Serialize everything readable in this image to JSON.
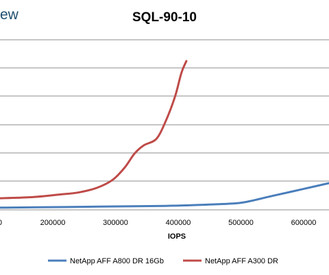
{
  "brand_fragment": "ew",
  "chart_data": {
    "type": "line",
    "title": "SQL-90-10",
    "xlabel": "IOPS",
    "ylabel": "",
    "x_ticks": [
      200000,
      300000,
      400000,
      500000,
      600000
    ],
    "x_tick_labels": [
      "200000",
      "300000",
      "400000",
      "500000",
      "600000"
    ],
    "partial_left_tick_label": "0",
    "grid": true,
    "legend_position": "bottom",
    "series": [
      {
        "name": "NetApp AFF A800 DR 16Gb",
        "color": "#4a7ebb",
        "x": [
          80000,
          150000,
          220000,
          300000,
          380000,
          420000,
          480000,
          505000,
          550000,
          600000,
          650000
        ],
        "y": [
          0.14,
          0.17,
          0.2,
          0.24,
          0.28,
          0.33,
          0.43,
          0.53,
          0.98,
          1.48,
          1.98
        ]
      },
      {
        "name": "NetApp AFF A300 DR",
        "color": "#be4b48",
        "x": [
          80000,
          160000,
          210000,
          240000,
          270000,
          295000,
          315000,
          330000,
          345000,
          365000,
          380000,
          395000,
          405000,
          413000
        ],
        "y": [
          0.78,
          0.88,
          1.08,
          1.22,
          1.55,
          2.1,
          3.0,
          3.95,
          4.55,
          5.0,
          6.25,
          8.0,
          9.65,
          10.5
        ]
      }
    ]
  }
}
